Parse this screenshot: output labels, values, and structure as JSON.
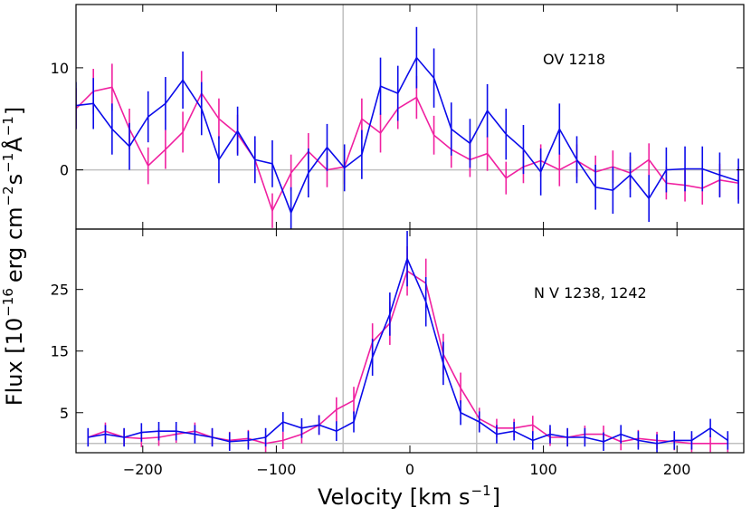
{
  "xlabel": [
    "Velocity [km s",
    "−1",
    "]"
  ],
  "ylabel": [
    "Flux [10",
    "−16",
    "erg cm",
    "−2",
    "s",
    "−1",
    "Å",
    "−1",
    "]"
  ],
  "chart_data": [
    {
      "type": "line",
      "annotation": "OV 1218",
      "xlim": [
        -250,
        250
      ],
      "ylim": [
        -5.8,
        16.2
      ],
      "yticks": [
        0,
        10
      ],
      "hline": 0,
      "vlines": [
        -50,
        50
      ],
      "x": [
        -250,
        -237,
        -223,
        -210,
        -196,
        -183,
        -170,
        -156,
        -143,
        -129,
        -116,
        -103,
        -89,
        -76,
        -62,
        -49,
        -36,
        -22,
        -9,
        5,
        18,
        31,
        45,
        58,
        72,
        85,
        98,
        112,
        125,
        139,
        152,
        165,
        179,
        192,
        206,
        219,
        232,
        246
      ],
      "series": [
        {
          "color": "#0b0bea",
          "values": [
            6.3,
            6.5,
            4.0,
            2.3,
            5.2,
            6.5,
            8.8,
            6.0,
            1.0,
            3.8,
            1.0,
            0.6,
            -4.2,
            -0.3,
            2.2,
            0.2,
            1.5,
            8.2,
            7.5,
            11.0,
            9.0,
            4.0,
            2.6,
            5.8,
            3.5,
            2.0,
            -0.2,
            4.0,
            1.0,
            -1.7,
            -2.0,
            -0.5,
            -2.8,
            0.0,
            0.1,
            0.1,
            -0.5,
            -1.1
          ],
          "errors": [
            2.3,
            2.5,
            2.5,
            2.3,
            2.5,
            2.6,
            2.8,
            2.6,
            2.3,
            2.4,
            2.3,
            2.3,
            2.5,
            2.4,
            2.3,
            2.3,
            2.4,
            2.8,
            2.7,
            3.0,
            2.9,
            2.6,
            2.4,
            2.6,
            2.5,
            2.4,
            2.3,
            2.5,
            2.3,
            2.2,
            2.3,
            2.2,
            2.3,
            2.2,
            2.2,
            2.2,
            2.2,
            2.2
          ]
        },
        {
          "color": "#f020a0",
          "values": [
            6.0,
            7.7,
            8.1,
            4.0,
            0.4,
            2.0,
            3.7,
            7.5,
            5.0,
            3.5,
            1.0,
            -4.0,
            -0.3,
            1.8,
            0.0,
            0.3,
            5.0,
            3.6,
            6.0,
            7.1,
            3.4,
            2.0,
            1.0,
            1.6,
            -0.8,
            0.3,
            0.9,
            0.0,
            0.9,
            -0.2,
            0.3,
            -0.3,
            1.0,
            -1.3,
            -1.5,
            -1.8,
            -1.0,
            -1.3
          ],
          "errors": [
            2.0,
            2.2,
            2.3,
            2.0,
            1.8,
            1.9,
            2.0,
            2.2,
            2.0,
            1.9,
            1.8,
            1.7,
            1.8,
            1.8,
            1.7,
            1.7,
            2.0,
            1.9,
            2.0,
            2.1,
            1.9,
            1.8,
            1.7,
            1.7,
            1.6,
            1.6,
            1.6,
            1.6,
            1.6,
            1.6,
            1.6,
            1.6,
            1.6,
            1.6,
            1.6,
            1.6,
            1.6,
            1.6
          ]
        }
      ]
    },
    {
      "type": "line",
      "annotation": "N V 1238, 1242",
      "xlim": [
        -250,
        250
      ],
      "ylim": [
        -1.5,
        34.8
      ],
      "yticks": [
        5,
        15,
        25
      ],
      "hline": 0,
      "vlines": [
        -50,
        50
      ],
      "xticks": [
        {
          "value": -200,
          "label": "−200"
        },
        {
          "value": -100,
          "label": "−100"
        },
        0,
        100,
        200
      ],
      "x": [
        -241,
        -228,
        -214,
        -201,
        -188,
        -175,
        -161,
        -148,
        -135,
        -121,
        -108,
        -95,
        -81,
        -68,
        -55,
        -42,
        -28,
        -15,
        -2,
        12,
        25,
        38,
        52,
        65,
        78,
        92,
        105,
        118,
        131,
        145,
        158,
        171,
        185,
        198,
        211,
        225,
        238
      ],
      "series": [
        {
          "color": "#0b0bea",
          "values": [
            1.0,
            1.5,
            1.0,
            1.8,
            2.0,
            2.0,
            1.5,
            1.0,
            0.3,
            0.5,
            1.0,
            3.5,
            2.5,
            3.0,
            2.0,
            3.5,
            14,
            21,
            30,
            23,
            13,
            5,
            3.5,
            1.5,
            2.0,
            0.5,
            1.5,
            1.0,
            1.0,
            0.3,
            1.5,
            0.5,
            0.0,
            0.5,
            0.5,
            2.5,
            0.5
          ],
          "errors": [
            1.5,
            1.5,
            1.5,
            1.5,
            1.5,
            1.5,
            1.5,
            1.5,
            1.5,
            1.5,
            1.5,
            1.6,
            1.6,
            1.6,
            1.6,
            1.7,
            3.0,
            3.5,
            4.5,
            4.0,
            3.5,
            2.0,
            1.7,
            1.5,
            1.5,
            1.5,
            1.5,
            1.5,
            1.5,
            1.5,
            1.5,
            1.5,
            1.5,
            1.5,
            1.5,
            1.5,
            1.5
          ]
        },
        {
          "color": "#f020a0",
          "values": [
            1.0,
            2.0,
            1.0,
            0.8,
            1.0,
            1.5,
            2.0,
            1.0,
            0.5,
            0.8,
            0.0,
            0.5,
            1.5,
            3.0,
            5.5,
            7,
            16.5,
            19.5,
            28,
            26,
            14.5,
            9,
            4,
            2.5,
            2.5,
            3.0,
            1.0,
            1.0,
            1.5,
            1.5,
            0.3,
            0.8,
            0.5,
            0.3,
            0.0,
            0.0,
            0.0
          ],
          "errors": [
            1.4,
            1.4,
            1.4,
            1.4,
            1.4,
            1.4,
            1.4,
            1.4,
            1.4,
            1.4,
            1.4,
            1.4,
            1.5,
            1.6,
            2.0,
            2.2,
            3.0,
            3.5,
            4.0,
            4.0,
            3.3,
            2.5,
            1.8,
            1.5,
            1.5,
            1.5,
            1.4,
            1.4,
            1.4,
            1.4,
            1.4,
            1.4,
            1.4,
            1.4,
            1.4,
            1.4,
            1.4
          ]
        }
      ]
    }
  ]
}
